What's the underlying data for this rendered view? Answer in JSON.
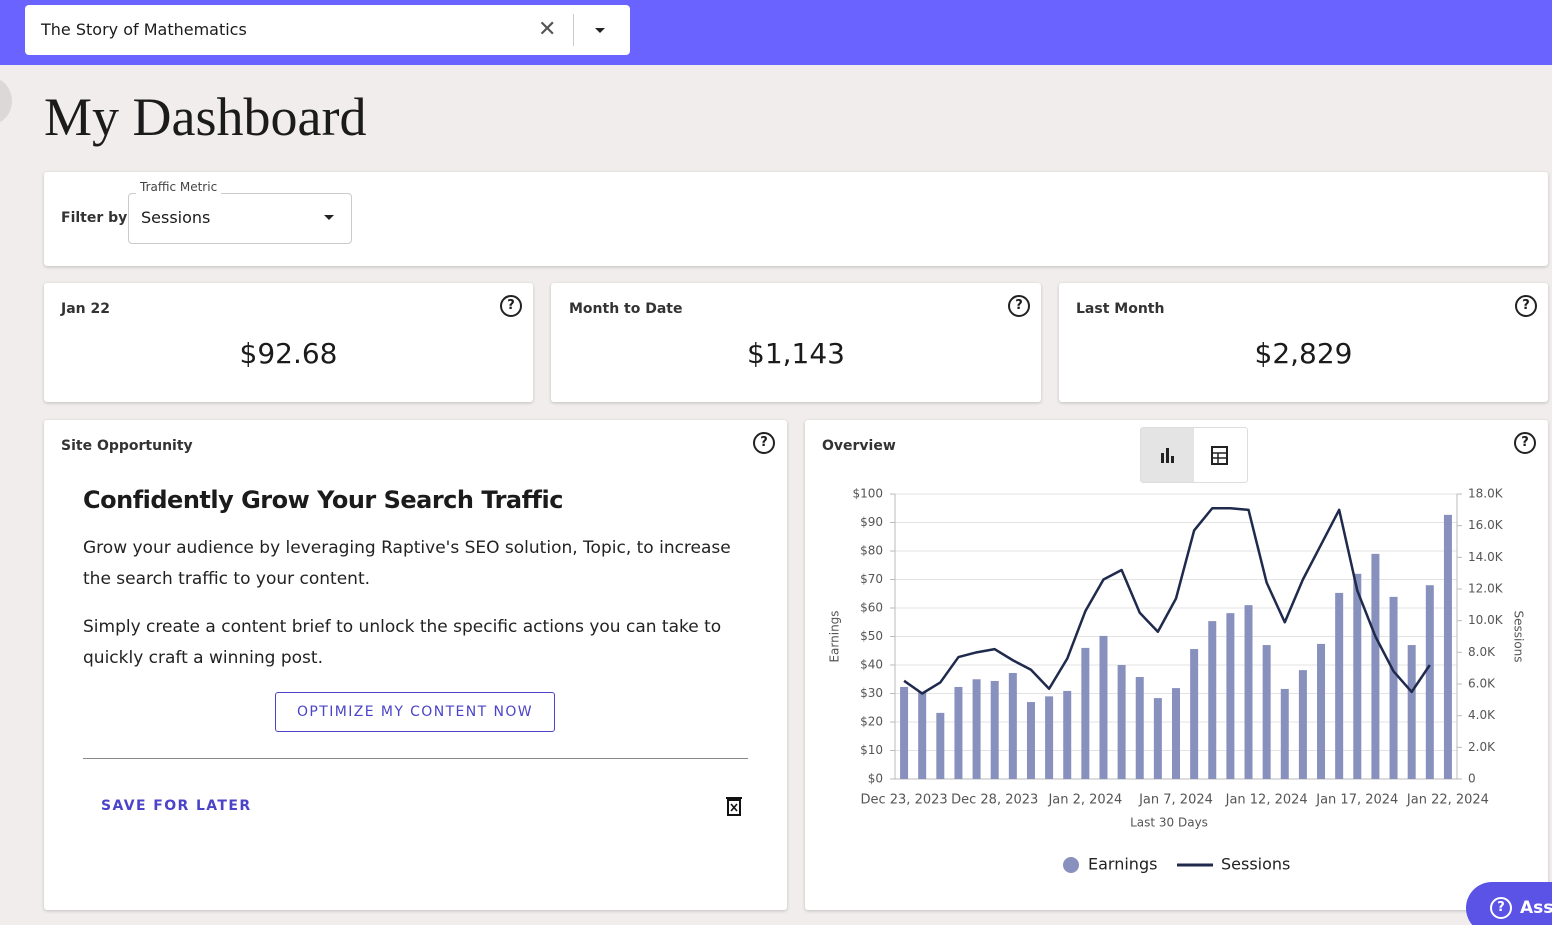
{
  "header": {
    "site": "The Story of Mathematics"
  },
  "page_title": "My Dashboard",
  "filter": {
    "label": "Filter by",
    "field_label": "Traffic Metric",
    "value": "Sessions"
  },
  "cards": [
    {
      "label": "Jan 22",
      "value": "$92.68"
    },
    {
      "label": "Month to Date",
      "value": "$1,143"
    },
    {
      "label": "Last Month",
      "value": "$2,829"
    }
  ],
  "opportunity": {
    "section": "Site Opportunity",
    "heading": "Confidently Grow Your Search Traffic",
    "paragraphs": [
      "Grow your audience by leveraging Raptive's SEO solution, Topic, to increase the search traffic to your content.",
      "Simply create a content brief to unlock the specific actions you can take to quickly craft a winning post."
    ],
    "button": "OPTIMIZE MY CONTENT NOW",
    "save": "SAVE FOR LATER"
  },
  "overview": {
    "title": "Overview"
  },
  "assist": "Assist",
  "chart_data": {
    "type": "bar-line",
    "x_label": "Last 30 Days",
    "y_label": "Earnings",
    "y2_label": "Sessions",
    "categories": [
      "Dec 23, 2023",
      null,
      null,
      null,
      null,
      "Dec 28, 2023",
      null,
      null,
      null,
      null,
      "Jan 2, 2024",
      null,
      null,
      null,
      null,
      "Jan 7, 2024",
      null,
      null,
      null,
      null,
      "Jan 12, 2024",
      null,
      null,
      null,
      null,
      "Jan 17, 2024",
      null,
      null,
      null,
      null,
      "Jan 22, 2024"
    ],
    "series": [
      {
        "name": "Earnings",
        "color": "#8891bd",
        "kind": "bar",
        "values": [
          32.3,
          30.5,
          23.2,
          32.3,
          35,
          34.4,
          37.2,
          27,
          29,
          30.9,
          46,
          50.2,
          40,
          35.8,
          28.4,
          31.9,
          45.6,
          55.4,
          58.2,
          61,
          47,
          31.6,
          38.2,
          47.4,
          65.3,
          72,
          79,
          63.9,
          47,
          68,
          92.68
        ]
      },
      {
        "name": "Sessions",
        "color": "#1f2a4d",
        "kind": "line",
        "axis": "y2",
        "values": [
          6200,
          5400,
          6100,
          7700,
          8000,
          8200,
          7500,
          6900,
          5700,
          7600,
          10600,
          12600,
          13200,
          10500,
          9300,
          11400,
          15700,
          17100,
          17100,
          17000,
          12400,
          9900,
          12600,
          14800,
          17000,
          11900,
          9000,
          6800,
          5500,
          7200,
          null
        ]
      }
    ],
    "ylim": [
      0,
      100
    ],
    "yticks": [
      {
        "value": 0,
        "label": "$0"
      },
      {
        "value": 10,
        "label": "$10"
      },
      {
        "value": 20,
        "label": "$20"
      },
      {
        "value": 30,
        "label": "$30"
      },
      {
        "value": 40,
        "label": "$40"
      },
      {
        "value": 50,
        "label": "$50"
      },
      {
        "value": 60,
        "label": "$60"
      },
      {
        "value": 70,
        "label": "$70"
      },
      {
        "value": 80,
        "label": "$80"
      },
      {
        "value": 90,
        "label": "$90"
      },
      {
        "value": 100,
        "label": "$100"
      }
    ],
    "y2lim": [
      0,
      18000
    ],
    "y2ticks": [
      0,
      {
        "value": 2000,
        "label": "2.0K"
      },
      {
        "value": 4000,
        "label": "4.0K"
      },
      {
        "value": 6000,
        "label": "6.0K"
      },
      {
        "value": 8000,
        "label": "8.0K"
      },
      {
        "value": 10000,
        "label": "10.0K"
      },
      {
        "value": 12000,
        "label": "12.0K"
      },
      {
        "value": 14000,
        "label": "14.0K"
      },
      {
        "value": 16000,
        "label": "16.0K"
      },
      {
        "value": 18000,
        "label": "18.0K"
      }
    ],
    "grid": true,
    "legend": "bottom"
  }
}
